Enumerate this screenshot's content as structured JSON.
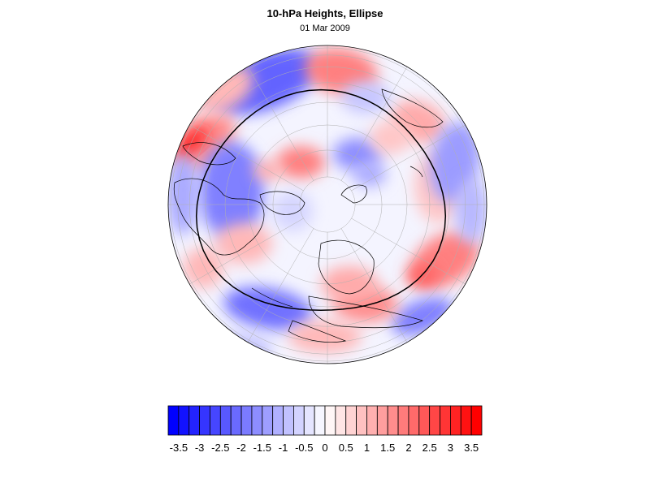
{
  "title": "10-hPa Heights, Ellipse",
  "date": "01 Mar 2009",
  "colors": {
    "negative": "#0000ff",
    "positive": "#ff0000",
    "neutral": "#ffffff",
    "ellipse": "#000000"
  },
  "colorbar": {
    "min": -3.75,
    "max": 3.75,
    "step": 0.25,
    "tick_labels": [
      "-3.5",
      "-3",
      "-2.5",
      "-2",
      "-1.5",
      "-1",
      "-0.5",
      "0",
      "0.5",
      "1",
      "1.5",
      "2",
      "2.5",
      "3",
      "3.5"
    ],
    "tick_values": [
      -3.5,
      -3,
      -2.5,
      -2,
      -1.5,
      -1,
      -0.5,
      0,
      0.5,
      1,
      1.5,
      2,
      2.5,
      3,
      3.5
    ]
  },
  "map": {
    "projection": "orthographic-north-polar",
    "graticule": true,
    "coastlines": true,
    "vortex_edge_ellipse": true
  }
}
